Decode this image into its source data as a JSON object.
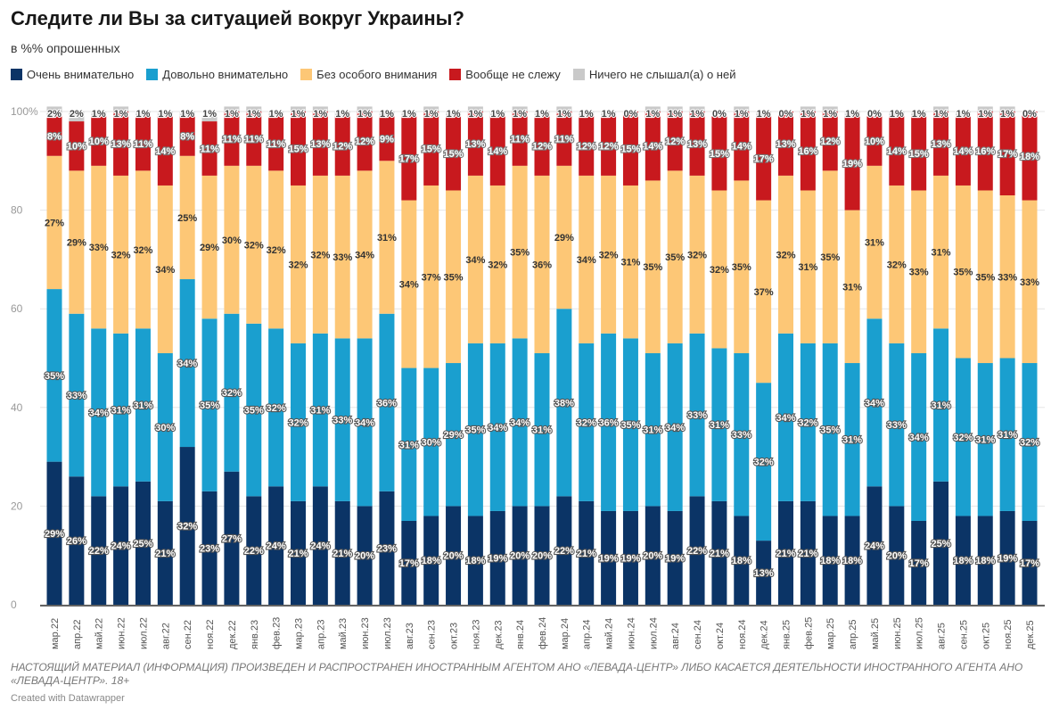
{
  "title": "Следите ли Вы за ситуацией вокруг Украины?",
  "subtitle": "в %% опрошенных",
  "footer": "НАСТОЯЩИЙ МАТЕРИАЛ (ИНФОРМАЦИЯ) ПРОИЗВЕДЕН И РАСПРОСТРАНЕН ИНОСТРАННЫМ АГЕНТОМ АНО «ЛЕВАДА-ЦЕНТР» ЛИБО КАСАЕТСЯ ДЕЯТЕЛЬНОСТИ ИНОСТРАННОГО АГЕНТА АНО «ЛЕВАДА-ЦЕНТР». 18+",
  "credit": "Created with Datawrapper",
  "chart_data": {
    "type": "bar",
    "stacked": true,
    "ylim": [
      0,
      100
    ],
    "yticks": [
      "0",
      "20",
      "40",
      "60",
      "80",
      "100%"
    ],
    "grid": true,
    "legend_position": "top-left",
    "categories": [
      "мар.22",
      "апр.22",
      "май.22",
      "июн.22",
      "июл.22",
      "авг.22",
      "сен.22",
      "ноя.22",
      "дек.22",
      "янв.23",
      "фев.23",
      "мар.23",
      "апр.23",
      "май.23",
      "июн.23",
      "июл.23",
      "авг.23",
      "сен.23",
      "окт.23",
      "ноя.23",
      "дек.23",
      "янв.24",
      "фев.24",
      "мар.24",
      "апр.24",
      "май.24",
      "июн.24",
      "июл.24",
      "авг.24",
      "сен.24",
      "окт.24",
      "ноя.24",
      "дек.24",
      "янв.25",
      "фев.25",
      "мар.25",
      "апр.25",
      "май.25",
      "июн.25",
      "июл.25",
      "авг.25",
      "сен.25",
      "окт.25",
      "ноя.25",
      "дек.25"
    ],
    "series": [
      {
        "name": "Очень внимательно",
        "color": "#0b3466",
        "values": [
          29,
          26,
          22,
          24,
          25,
          21,
          32,
          23,
          27,
          22,
          24,
          21,
          24,
          21,
          20,
          23,
          17,
          18,
          20,
          18,
          19,
          20,
          20,
          22,
          21,
          19,
          19,
          20,
          19,
          22,
          21,
          18,
          13,
          21,
          21,
          18,
          18,
          24,
          20,
          17,
          25,
          18,
          18,
          19,
          17
        ]
      },
      {
        "name": "Довольно внимательно",
        "color": "#1a9fcf",
        "values": [
          35,
          33,
          34,
          31,
          31,
          30,
          34,
          35,
          32,
          35,
          32,
          32,
          31,
          33,
          34,
          36,
          31,
          30,
          29,
          35,
          34,
          34,
          31,
          38,
          32,
          36,
          35,
          31,
          34,
          33,
          31,
          33,
          32,
          34,
          32,
          35,
          31,
          34,
          33,
          34,
          31,
          32,
          31,
          31,
          32
        ]
      },
      {
        "name": "Без особого внимания",
        "color": "#fdc776",
        "values": [
          27,
          29,
          33,
          32,
          32,
          34,
          25,
          29,
          30,
          32,
          32,
          32,
          32,
          33,
          34,
          31,
          34,
          37,
          35,
          34,
          32,
          35,
          36,
          29,
          34,
          32,
          31,
          35,
          35,
          32,
          32,
          35,
          37,
          32,
          31,
          35,
          31,
          31,
          32,
          33,
          31,
          35,
          35,
          33,
          33
        ]
      },
      {
        "name": "Вообще не слежу",
        "color": "#c8191e",
        "values": [
          8,
          10,
          10,
          13,
          11,
          14,
          8,
          11,
          11,
          11,
          11,
          15,
          13,
          12,
          12,
          9,
          17,
          15,
          15,
          13,
          14,
          11,
          12,
          11,
          12,
          12,
          15,
          14,
          12,
          13,
          15,
          14,
          17,
          13,
          16,
          12,
          19,
          10,
          14,
          15,
          13,
          14,
          16,
          17,
          18
        ]
      },
      {
        "name": "Ничего не слышал(а) о ней",
        "color": "#c9c9c9",
        "values": [
          2,
          2,
          1,
          1,
          1,
          1,
          1,
          1,
          1,
          1,
          1,
          1,
          1,
          1,
          1,
          1,
          1,
          1,
          1,
          1,
          1,
          1,
          1,
          1,
          1,
          1,
          0,
          1,
          1,
          1,
          0,
          1,
          1,
          0,
          1,
          1,
          1,
          0,
          1,
          1,
          1,
          1,
          1,
          1,
          0
        ]
      }
    ]
  }
}
